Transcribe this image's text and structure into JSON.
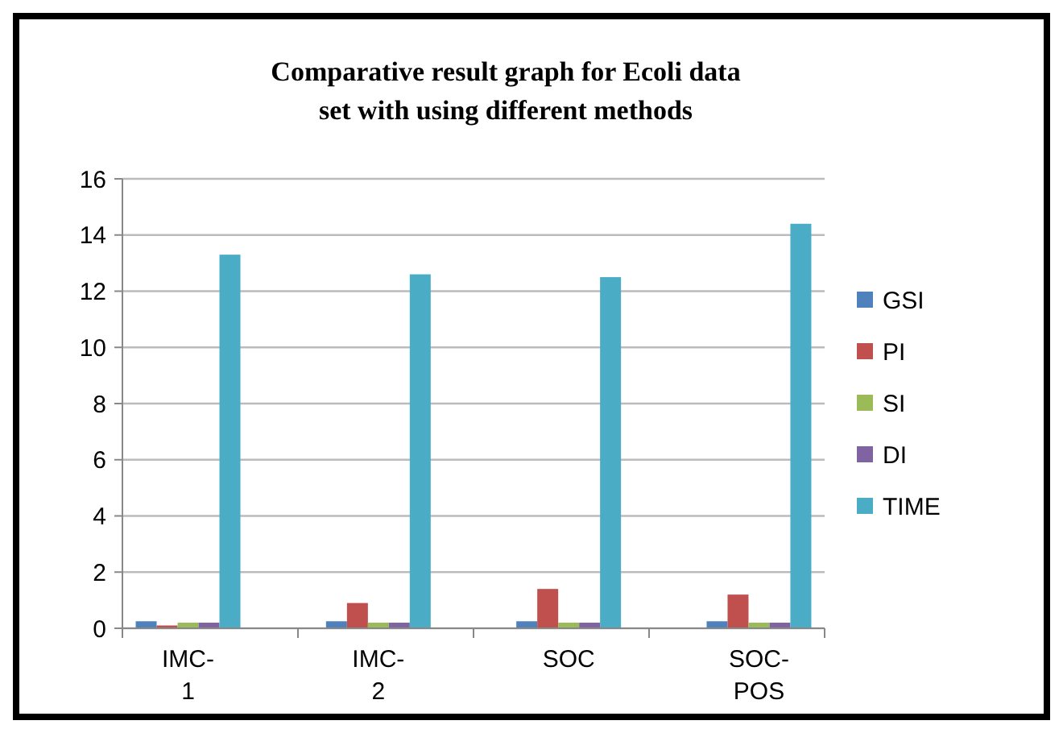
{
  "chart_data": {
    "type": "bar",
    "title": "Comparative result graph for Ecoli data set with using different methods",
    "categories": [
      "IMC-1",
      "IMC-2",
      "SOC",
      "SOC-POS"
    ],
    "series": [
      {
        "name": "GSI",
        "color": "#4f81bd",
        "values": [
          0.25,
          0.25,
          0.25,
          0.25
        ]
      },
      {
        "name": "PI",
        "color": "#c0504d",
        "values": [
          0.1,
          0.9,
          1.4,
          1.2
        ]
      },
      {
        "name": "SI",
        "color": "#9bbb59",
        "values": [
          0.2,
          0.2,
          0.2,
          0.2
        ]
      },
      {
        "name": "DI",
        "color": "#8064a2",
        "values": [
          0.2,
          0.2,
          0.2,
          0.2
        ]
      },
      {
        "name": "TIME",
        "color": "#4bacc6",
        "values": [
          13.3,
          12.6,
          12.5,
          14.4
        ]
      }
    ],
    "ylim": [
      0,
      16
    ],
    "yticks": [
      0,
      2,
      4,
      6,
      8,
      10,
      12,
      14,
      16
    ],
    "grid": "y",
    "legend": "right"
  }
}
